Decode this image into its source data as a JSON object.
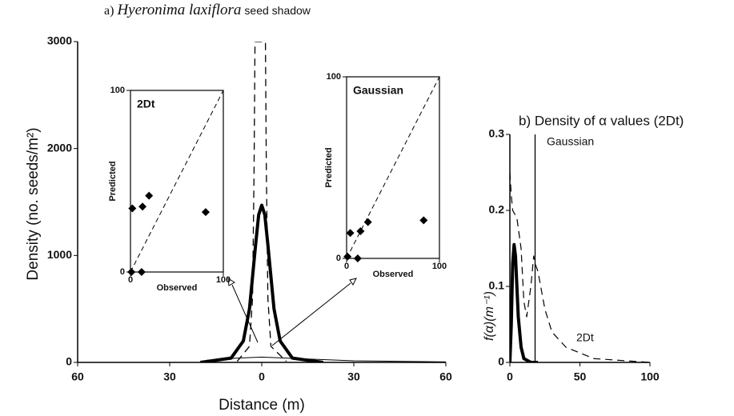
{
  "chart_data": [
    {
      "type": "line",
      "title": {
        "panel": "a)",
        "species": "Hyeronima laxiflora",
        "rest": "seed shadow"
      },
      "xlabel": "Distance    (m)",
      "ylabel": "Density (no. seeds/m²)",
      "xlim": [
        -60,
        60
      ],
      "ylim": [
        0,
        3000
      ],
      "xticks": [
        {
          "value": -60,
          "label": "60"
        },
        {
          "value": -30,
          "label": "30"
        },
        0,
        30,
        60
      ],
      "yticks": [
        0,
        1000,
        2000,
        3000
      ],
      "series": [
        {
          "color": "#000",
          "dashed": false,
          "width": 4,
          "x": [
            -20,
            -10,
            -6,
            -4,
            -2,
            -1,
            0,
            1,
            2,
            4,
            6,
            10,
            20
          ],
          "values": [
            0,
            40,
            200,
            500,
            1100,
            1380,
            1470,
            1380,
            1100,
            500,
            200,
            40,
            0
          ]
        },
        {
          "color": "#000",
          "dashed": true,
          "width": 1.3,
          "x": [
            -8,
            -4,
            -3,
            -2.5,
            -2.2,
            1.2,
            1.5,
            2,
            3,
            8
          ],
          "values": [
            10,
            150,
            600,
            1800,
            3000,
            3000,
            1800,
            600,
            150,
            10
          ]
        },
        {
          "color": "#000",
          "dashed": false,
          "width": 1,
          "x": [
            -18,
            -8,
            0,
            8,
            30,
            60
          ],
          "values": [
            20,
            40,
            50,
            40,
            15,
            5
          ]
        }
      ]
    },
    {
      "type": "scatter",
      "title": "2Dt",
      "xlabel": "Observed",
      "ylabel": "Predicted",
      "xlim": [
        0,
        100
      ],
      "ylim": [
        0,
        100
      ],
      "xticks": [
        0,
        100
      ],
      "yticks": [
        0,
        100
      ],
      "diagonal": true,
      "x": [
        1,
        2,
        13,
        20,
        81,
        12
      ],
      "values": [
        0,
        35,
        36,
        42,
        33,
        0
      ]
    },
    {
      "type": "scatter",
      "title": "Gaussian",
      "xlabel": "Observed",
      "ylabel": "Predicted",
      "xlim": [
        0,
        100
      ],
      "ylim": [
        0,
        100
      ],
      "xticks": [
        0,
        100
      ],
      "yticks": [
        0,
        100
      ],
      "diagonal": true,
      "x": [
        1,
        4,
        15,
        23,
        83,
        12
      ],
      "values": [
        1,
        14,
        15,
        20,
        21,
        0
      ]
    },
    {
      "type": "line",
      "title": "b) Density of α values (2Dt)",
      "ylabel": "f(α)(m⁻¹)",
      "annotations": [
        "Gaussian",
        "2Dt"
      ],
      "xlim": [
        0,
        100
      ],
      "ylim": [
        0,
        0.3
      ],
      "xticks": [
        0,
        50,
        100
      ],
      "yticks": [
        0,
        0.1,
        0.2,
        0.3
      ],
      "series": [
        {
          "color": "#000",
          "dashed": false,
          "width": 4,
          "x": [
            0,
            1,
            2,
            3,
            4,
            5,
            6,
            8,
            10,
            15,
            20
          ],
          "values": [
            0,
            0.05,
            0.13,
            0.155,
            0.14,
            0.1,
            0.06,
            0.02,
            0.005,
            0,
            0
          ]
        },
        {
          "color": "#000",
          "dashed": false,
          "width": 1.3,
          "x": [
            18,
            18
          ],
          "values": [
            0,
            0.3
          ]
        },
        {
          "color": "#000",
          "dashed": true,
          "width": 1.2,
          "x": [
            0,
            1,
            2,
            5,
            8,
            10,
            12,
            15,
            17,
            18,
            20,
            25,
            30,
            40,
            60,
            100
          ],
          "values": [
            0.25,
            0.22,
            0.2,
            0.19,
            0.15,
            0.08,
            0.06,
            0.1,
            0.14,
            0.13,
            0.12,
            0.07,
            0.04,
            0.02,
            0.005,
            0
          ]
        }
      ]
    }
  ]
}
